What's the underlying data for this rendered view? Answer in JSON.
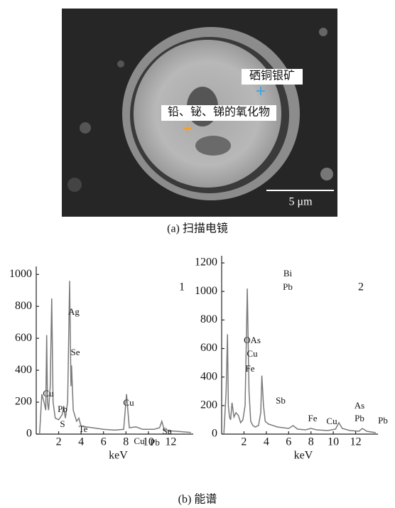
{
  "image": {
    "labels": [
      "硒铜银矿",
      "铅、铋、锑的氧化物"
    ],
    "scale_bar": "5 μm"
  },
  "caption_a": "(a) 扫描电镜",
  "chart_data": [
    {
      "type": "line",
      "panel_label": "1",
      "xlabel": "keV",
      "color": "#7a7a7a",
      "xlim": [
        0,
        14
      ],
      "ylim": [
        0,
        1050
      ],
      "xticks": [
        2,
        4,
        6,
        8,
        10,
        12
      ],
      "yticks": [
        0,
        200,
        400,
        600,
        800,
        1000
      ],
      "x": [
        0.3,
        0.5,
        0.7,
        0.85,
        0.93,
        1.0,
        1.1,
        1.25,
        1.38,
        1.5,
        1.7,
        2.0,
        2.3,
        2.45,
        2.6,
        2.8,
        2.98,
        3.1,
        3.15,
        3.3,
        3.6,
        3.8,
        4.0,
        5,
        6,
        7,
        7.8,
        8.05,
        8.3,
        8.9,
        9.5,
        10.5,
        11.0,
        11.2,
        11.4,
        12,
        13,
        13.8
      ],
      "values": [
        0,
        250,
        200,
        150,
        620,
        200,
        150,
        300,
        850,
        200,
        100,
        90,
        120,
        170,
        100,
        200,
        960,
        300,
        430,
        150,
        80,
        100,
        50,
        40,
        30,
        25,
        30,
        250,
        40,
        45,
        30,
        30,
        40,
        80,
        30,
        20,
        15,
        10
      ],
      "annotations": [
        "Cu",
        "Se",
        "Ag",
        "Pb",
        "S",
        "Te",
        "Cu",
        "Cu",
        "Pb",
        "Se"
      ]
    },
    {
      "type": "line",
      "panel_label": "2",
      "xlabel": "keV",
      "color": "#7a7a7a",
      "xlim": [
        0,
        14
      ],
      "ylim": [
        0,
        1250
      ],
      "xticks": [
        2,
        4,
        6,
        8,
        10,
        12
      ],
      "yticks": [
        0,
        200,
        400,
        600,
        800,
        1000,
        1200
      ],
      "x": [
        0.2,
        0.4,
        0.52,
        0.6,
        0.7,
        0.8,
        0.93,
        1.1,
        1.28,
        1.5,
        1.7,
        1.9,
        2.1,
        2.3,
        2.45,
        2.6,
        2.8,
        3.0,
        3.3,
        3.5,
        3.6,
        3.75,
        3.9,
        4.2,
        5,
        6,
        6.4,
        6.8,
        7.5,
        8.0,
        8.5,
        9.5,
        10.2,
        10.5,
        10.8,
        11.5,
        12.3,
        12.6,
        13,
        13.8
      ],
      "values": [
        0,
        300,
        700,
        200,
        120,
        100,
        220,
        120,
        150,
        130,
        80,
        100,
        200,
        1020,
        300,
        90,
        60,
        50,
        60,
        150,
        410,
        200,
        90,
        70,
        50,
        40,
        60,
        35,
        30,
        40,
        30,
        25,
        35,
        80,
        40,
        25,
        20,
        40,
        20,
        10
      ],
      "annotations": [
        "Bi",
        "Pb",
        "OAs",
        "Cu",
        "Fe",
        "Sb",
        "Fe",
        "Cu",
        "As",
        "Pb",
        "Pb"
      ]
    }
  ],
  "caption_b": "(b) 能谱"
}
